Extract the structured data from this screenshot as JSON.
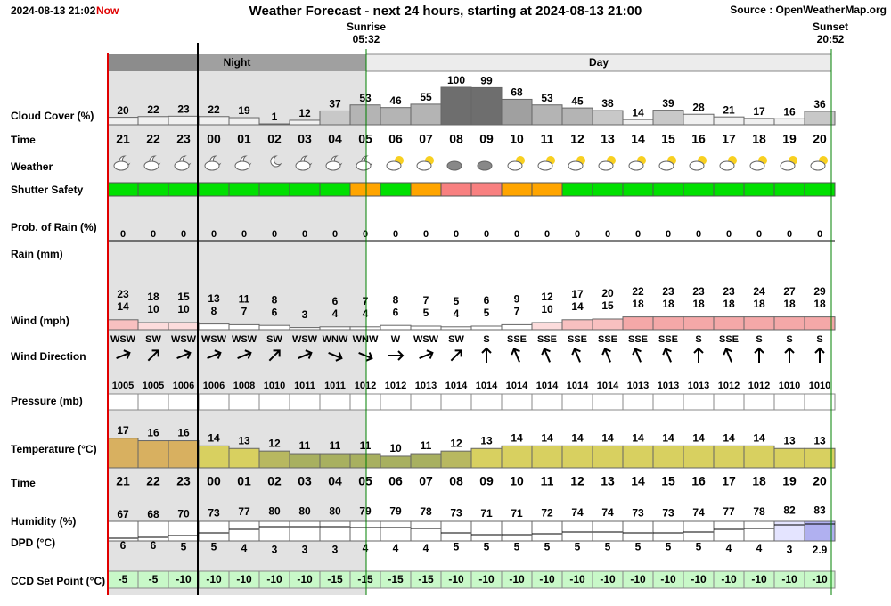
{
  "header": {
    "timestamp": "2024-08-13 21:02",
    "now": "Now",
    "title": "Weather Forecast - next 24 hours, starting at 2024-08-13 21:00",
    "source": "Source : OpenWeatherMap.org"
  },
  "sunrise": {
    "label": "Sunrise",
    "time": "05:32"
  },
  "sunset": {
    "label": "Sunset",
    "time": "20:52"
  },
  "bands": {
    "night": "Night",
    "day": "Day"
  },
  "labels": {
    "cloud": "Cloud Cover (%)",
    "time": "Time",
    "weather": "Weather",
    "shutter": "Shutter Safety",
    "rain_prob": "Prob. of Rain (%)",
    "rain": "Rain (mm)",
    "wind": "Wind (mph)",
    "direction": "Wind Direction",
    "pressure": "Pressure (mb)",
    "temperature": "Temperature (°C)",
    "time2": "Time",
    "humidity": "Humidity (%)",
    "dpd": "DPD (°C)",
    "ccd": "CCD Set Point (°C)"
  },
  "hours": [
    "21",
    "22",
    "23",
    "00",
    "01",
    "02",
    "03",
    "04",
    "05",
    "06",
    "07",
    "08",
    "09",
    "10",
    "11",
    "12",
    "13",
    "14",
    "15",
    "16",
    "17",
    "18",
    "19",
    "20"
  ],
  "cloud": [
    20,
    22,
    23,
    22,
    19,
    1,
    12,
    37,
    53,
    46,
    55,
    100,
    99,
    68,
    53,
    45,
    38,
    14,
    39,
    28,
    21,
    17,
    16,
    36
  ],
  "shutter_colors": [
    "#00e000",
    "#00e000",
    "#00e000",
    "#00e000",
    "#00e000",
    "#00e000",
    "#00e000",
    "#00e000",
    "#ffa500",
    "#00e000",
    "#ffa500",
    "#f88080",
    "#f88080",
    "#ffa500",
    "#ffa500",
    "#00e000",
    "#00e000",
    "#00e000",
    "#00e000",
    "#00e000",
    "#00e000",
    "#00e000",
    "#00e000",
    "#00e000"
  ],
  "rain_prob": [
    0,
    0,
    0,
    0,
    0,
    0,
    0,
    0,
    0,
    0,
    0,
    0,
    0,
    0,
    0,
    0,
    0,
    0,
    0,
    0,
    0,
    0,
    0,
    0
  ],
  "gust": [
    23,
    18,
    15,
    13,
    11,
    8,
    null,
    6,
    7,
    8,
    7,
    5,
    6,
    9,
    12,
    17,
    20,
    22,
    23,
    23,
    23,
    24,
    27,
    29
  ],
  "wind": [
    14,
    10,
    10,
    8,
    7,
    6,
    3,
    4,
    4,
    6,
    5,
    4,
    5,
    7,
    10,
    14,
    15,
    18,
    18,
    18,
    18,
    18,
    18,
    18
  ],
  "direction": [
    "WSW",
    "SW",
    "WSW",
    "WSW",
    "WSW",
    "SW",
    "WSW",
    "WNW",
    "WNW",
    "W",
    "WSW",
    "SW",
    "S",
    "SSE",
    "SSE",
    "SSE",
    "SSE",
    "SSE",
    "SSE",
    "S",
    "SSE",
    "S",
    "S",
    "S"
  ],
  "pressure": [
    1005,
    1005,
    1006,
    1006,
    1008,
    1010,
    1011,
    1011,
    1012,
    1012,
    1013,
    1014,
    1014,
    1014,
    1014,
    1014,
    1014,
    1013,
    1013,
    1013,
    1012,
    1012,
    1010,
    1010
  ],
  "temperature": [
    17,
    16,
    16,
    14,
    13,
    12,
    11,
    11,
    11,
    10,
    11,
    12,
    13,
    14,
    14,
    14,
    14,
    14,
    14,
    14,
    14,
    14,
    13,
    13
  ],
  "humidity": [
    67,
    68,
    70,
    73,
    77,
    80,
    80,
    80,
    79,
    79,
    78,
    73,
    71,
    71,
    72,
    74,
    74,
    73,
    73,
    74,
    77,
    78,
    82,
    83
  ],
  "dpd": [
    6,
    6,
    5,
    5,
    4,
    3,
    3,
    3,
    4,
    4,
    4,
    5,
    5,
    5,
    5,
    5,
    5,
    5,
    5,
    5,
    4,
    4,
    3,
    2.9
  ],
  "ccd": [
    -5,
    -5,
    -10,
    -10,
    -10,
    -10,
    -10,
    -15,
    -15,
    -15,
    -15,
    -10,
    -10,
    -10,
    -10,
    -10,
    -10,
    -10,
    -10,
    -10,
    -10,
    -10,
    -10,
    -10
  ]
}
